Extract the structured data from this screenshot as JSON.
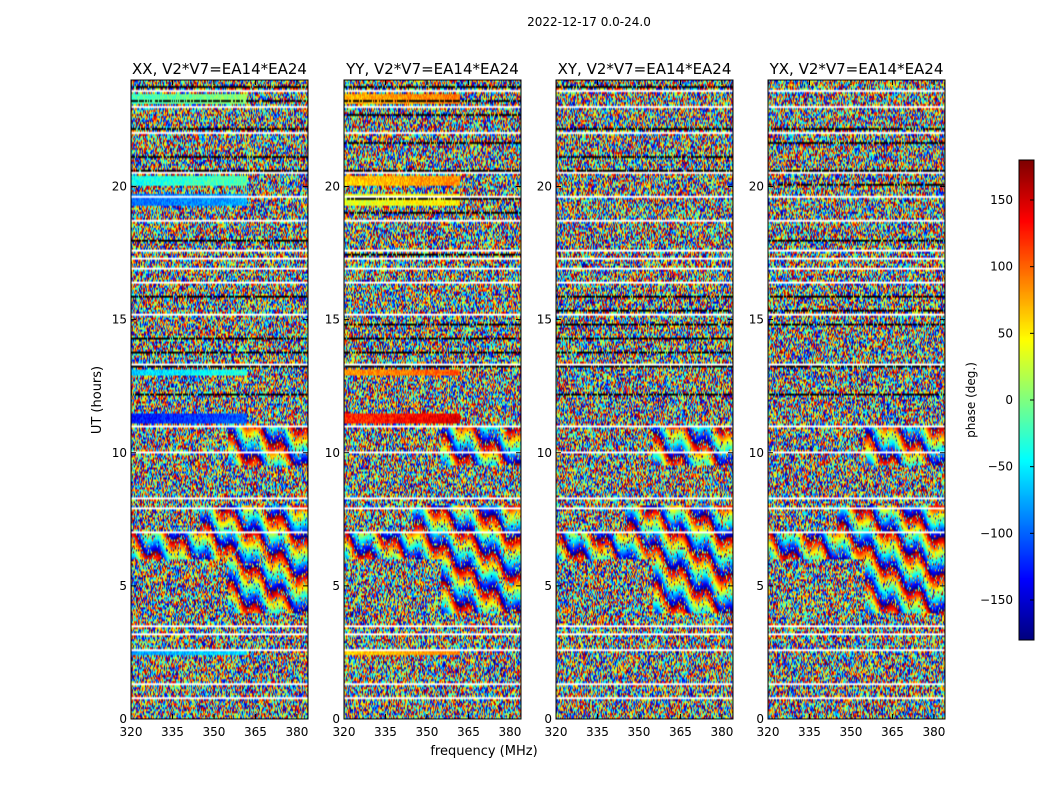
{
  "chart_data": {
    "type": "heatmap",
    "suptitle": "2022-12-17 0.0-24.0",
    "xlabel": "frequency (MHz)",
    "ylabel": "UT (hours)",
    "xlim": [
      320,
      384
    ],
    "ylim": [
      0,
      24
    ],
    "xticks": [
      320,
      335,
      350,
      365,
      380
    ],
    "yticks": [
      0,
      5,
      10,
      15,
      20
    ],
    "panels": [
      {
        "title": "XX, V2*V7=EA14*EA24",
        "polarization": "XX"
      },
      {
        "title": "YY, V2*V7=EA14*EA24",
        "polarization": "YY"
      },
      {
        "title": "XY, V2*V7=EA14*EA24",
        "polarization": "XY"
      },
      {
        "title": "YX, V2*V7=EA14*EA24",
        "polarization": "YX"
      }
    ],
    "colorbar": {
      "label": "phase (deg.)",
      "range": [
        -180,
        180
      ],
      "ticks": [
        -150,
        -100,
        -50,
        0,
        50,
        100,
        150
      ],
      "tick_labels": [
        "−150",
        "−100",
        "−50",
        "0",
        "50",
        "100",
        "150"
      ],
      "colormap": "jet"
    },
    "flagged_ut_hours": [
      0.3,
      0.8,
      1.3,
      2.4,
      2.6,
      3.2,
      3.5,
      7.0,
      7.9,
      8.3,
      9.6,
      10.0,
      10.5,
      11.0,
      13.3,
      15.2,
      16.2,
      16.4,
      16.9,
      17.3,
      17.6,
      18.7,
      19.2,
      19.6,
      20.5,
      22.0,
      23.0,
      23.6
    ],
    "fringe_regions": [
      {
        "ut_range": [
          6.0,
          7.0
        ],
        "freq_range": [
          320,
          384
        ]
      },
      {
        "ut_range": [
          4.0,
          6.0
        ],
        "freq_range": [
          355,
          384
        ]
      },
      {
        "ut_range": [
          9.5,
          11.0
        ],
        "freq_range": [
          355,
          384
        ]
      },
      {
        "ut_range": [
          7.0,
          8.0
        ],
        "freq_range": [
          345,
          384
        ]
      }
    ],
    "coherent_bands": [
      {
        "ut_range": [
          2.4,
          2.6
        ],
        "phase_xx": -80,
        "phase_yy": 60
      },
      {
        "ut_range": [
          11.1,
          11.5
        ],
        "phase_xx": -130,
        "phase_yy": 120
      },
      {
        "ut_range": [
          12.9,
          13.1
        ],
        "phase_xx": -60,
        "phase_yy": 80
      },
      {
        "ut_range": [
          19.3,
          19.7
        ],
        "phase_xx": -100,
        "phase_yy": 30
      },
      {
        "ut_range": [
          20.0,
          20.4
        ],
        "phase_xx": -40,
        "phase_yy": 60
      },
      {
        "ut_range": [
          23.1,
          23.5
        ],
        "phase_xx": -20,
        "phase_yy": 70
      }
    ]
  }
}
